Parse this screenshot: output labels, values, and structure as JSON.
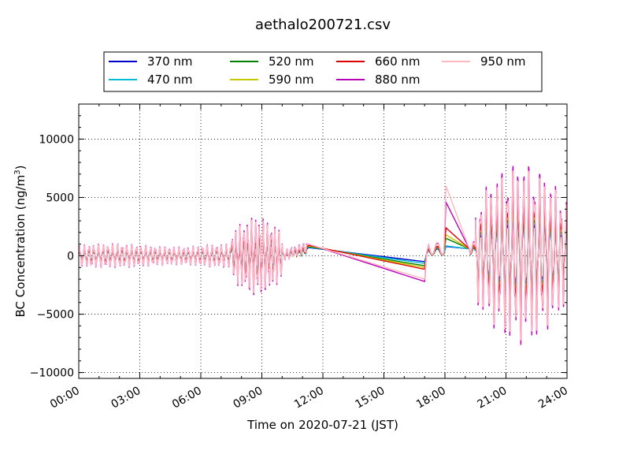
{
  "chart_data": {
    "type": "line",
    "title": "aethalo200721.csv",
    "xlabel": "Time on 2020-07-21 (JST)",
    "ylabel_main": "BC Concentration (ng/m",
    "ylabel_sup": "3",
    "ylabel_close": ")",
    "xlim": [
      0,
      24
    ],
    "ylim": [
      -10500,
      13000
    ],
    "x_ticks": [
      {
        "value": 0,
        "label": "00:00"
      },
      {
        "value": 3,
        "label": "03:00"
      },
      {
        "value": 6,
        "label": "06:00"
      },
      {
        "value": 9,
        "label": "09:00"
      },
      {
        "value": 12,
        "label": "12:00"
      },
      {
        "value": 15,
        "label": "15:00"
      },
      {
        "value": 18,
        "label": "18:00"
      },
      {
        "value": 21,
        "label": "21:00"
      },
      {
        "value": 24,
        "label": "24:00"
      }
    ],
    "y_ticks": [
      {
        "value": 10000,
        "label": "10000"
      },
      {
        "value": 5000,
        "label": "5000"
      },
      {
        "value": 0,
        "label": "0"
      },
      {
        "value": -5000,
        "label": "−5000"
      },
      {
        "value": -10000,
        "label": "−10000"
      }
    ],
    "grid": "dotted",
    "legend_position": "top",
    "series": [
      {
        "name": "370 nm",
        "color": "#0000cc",
        "scale": 0.55,
        "gap_start": 700,
        "gap_end": -500,
        "jump": 800
      },
      {
        "name": "470 nm",
        "color": "#00bcd4",
        "scale": 0.6,
        "gap_start": 750,
        "gap_end": -650,
        "jump": 850
      },
      {
        "name": "520 nm",
        "color": "#008000",
        "scale": 0.65,
        "gap_start": 800,
        "gap_end": -850,
        "jump": 1500
      },
      {
        "name": "590 nm",
        "color": "#c8c800",
        "scale": 0.7,
        "gap_start": 850,
        "gap_end": -1000,
        "jump": 1800
      },
      {
        "name": "660 nm",
        "color": "#e00000",
        "scale": 0.75,
        "gap_start": 900,
        "gap_end": -1150,
        "jump": 2400
      },
      {
        "name": "880 nm",
        "color": "#bb00bb",
        "scale": 1.0,
        "gap_start": 1000,
        "gap_end": -2200,
        "jump": 4600
      },
      {
        "name": "950 nm",
        "color": "#ffb6c1",
        "scale": 0.95,
        "gap_start": 1000,
        "gap_end": -2000,
        "jump": 6000
      }
    ]
  }
}
